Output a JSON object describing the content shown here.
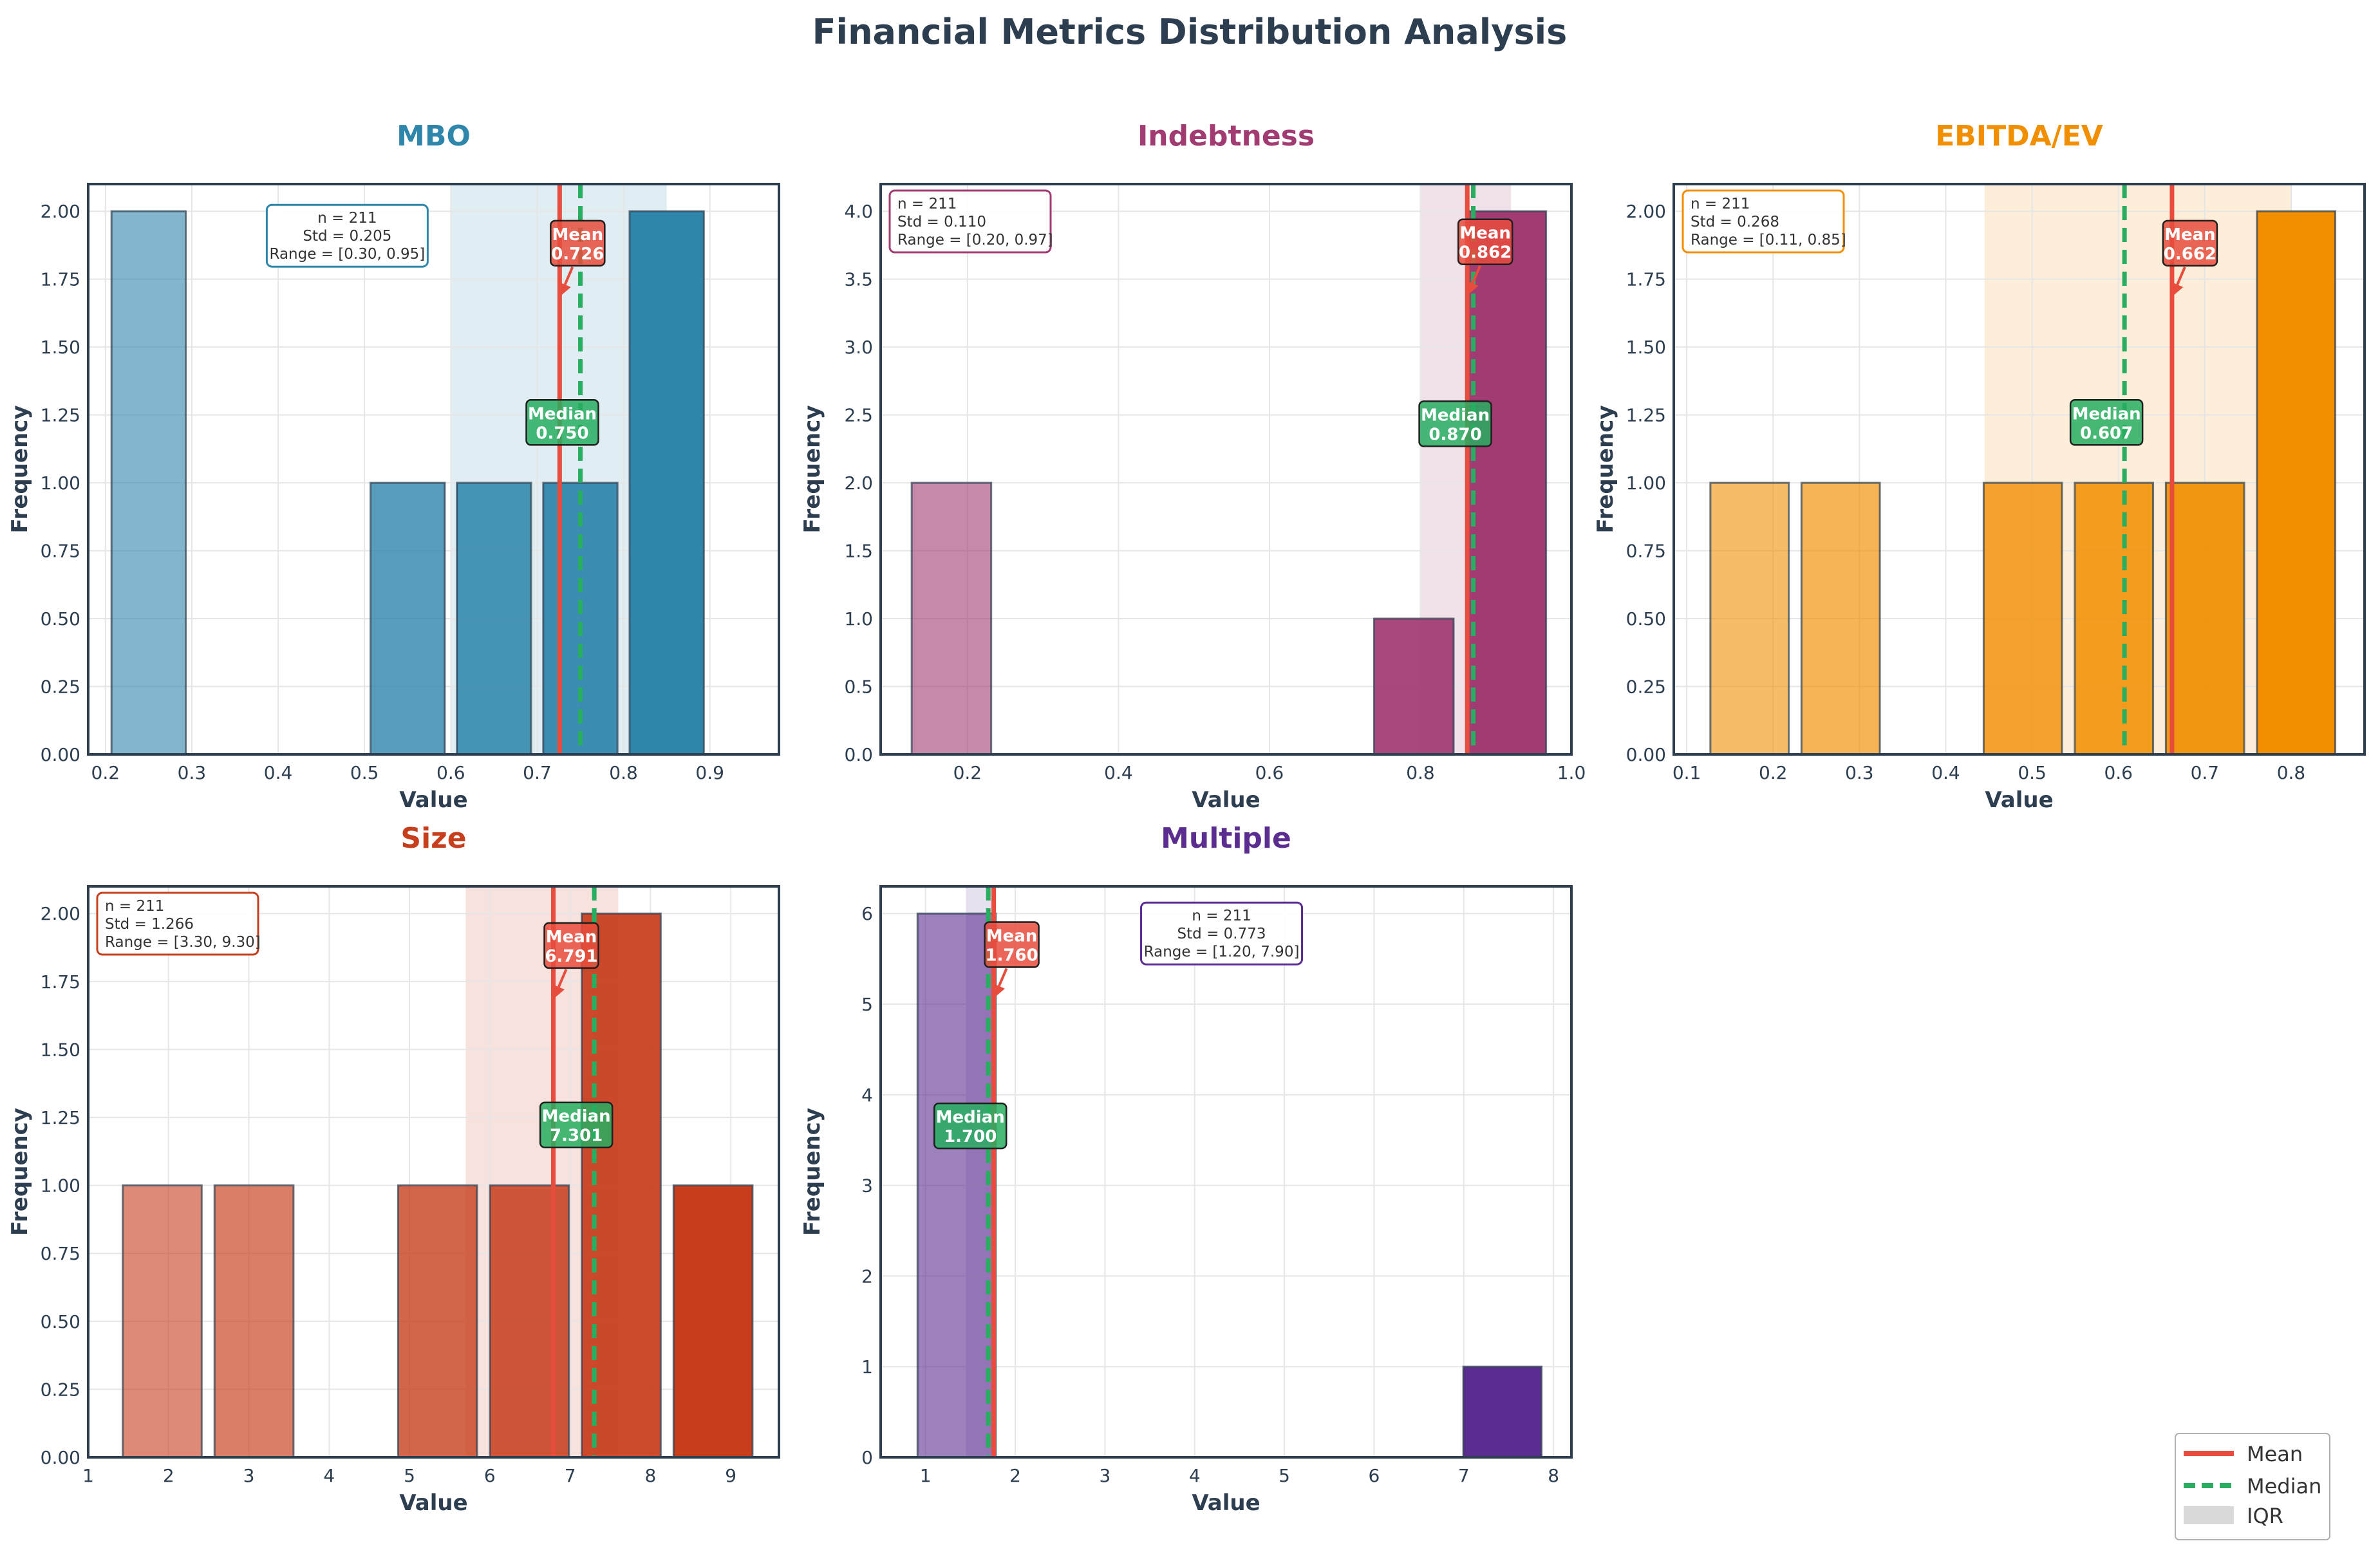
{
  "figure_title": "Financial Metrics Distribution Analysis",
  "colors": {
    "mean": "#e74c3c",
    "median": "#27ae60",
    "iqr": "#d9d9d9",
    "axis": "#2c3e50",
    "grid": "#e6e6e6"
  },
  "legend": {
    "mean_label": "Mean",
    "median_label": "Median",
    "iqr_label": "IQR"
  },
  "chart_data": [
    {
      "type": "bar",
      "title": "MBO",
      "color": "#2e86ab",
      "xlabel": "Value",
      "ylabel": "Frequency",
      "xlim": [
        0.18,
        0.98
      ],
      "ylim": [
        0,
        2.1
      ],
      "xticks": [
        0.2,
        0.3,
        0.4,
        0.5,
        0.6,
        0.7,
        0.8,
        0.9
      ],
      "xtick_labels": [
        "0.2",
        "0.3",
        "0.4",
        "0.5",
        "0.6",
        "0.7",
        "0.8",
        "0.9"
      ],
      "yticks": [
        0,
        0.25,
        0.5,
        0.75,
        1.0,
        1.25,
        1.5,
        1.75,
        2.0
      ],
      "ytick_labels": [
        "0.00",
        "0.25",
        "0.50",
        "0.75",
        "1.00",
        "1.25",
        "1.50",
        "1.75",
        "2.00"
      ],
      "bin_width": 0.1,
      "bins": [
        {
          "start": 0.2,
          "value": 2
        },
        {
          "start": 0.3,
          "value": 0
        },
        {
          "start": 0.4,
          "value": 0
        },
        {
          "start": 0.5,
          "value": 1
        },
        {
          "start": 0.6,
          "value": 1
        },
        {
          "start": 0.7,
          "value": 1
        },
        {
          "start": 0.8,
          "value": 2
        }
      ],
      "mean": 0.726,
      "median": 0.75,
      "iqr": [
        0.6,
        0.85
      ],
      "mean_label": "Mean\n0.726",
      "median_label": "Median\n0.750",
      "mean_label_y": 1.88,
      "median_label_y": 1.22,
      "stats": {
        "n": "n = 211",
        "std": "Std = 0.205",
        "range": "Range = [0.30, 0.95]",
        "position": "top-center",
        "x": 0.48,
        "y": 2.0
      }
    },
    {
      "type": "bar",
      "title": "Indebtness",
      "color": "#a23b72",
      "xlabel": "Value",
      "ylabel": "Frequency",
      "xlim": [
        0.085,
        1.0
      ],
      "ylim": [
        0,
        4.2
      ],
      "xticks": [
        0.2,
        0.4,
        0.6,
        0.8,
        1.0
      ],
      "xtick_labels": [
        "0.2",
        "0.4",
        "0.6",
        "0.8",
        "1.0"
      ],
      "yticks": [
        0,
        0.5,
        1.0,
        1.5,
        2.0,
        2.5,
        3.0,
        3.5,
        4.0
      ],
      "ytick_labels": [
        "0.0",
        "0.5",
        "1.0",
        "1.5",
        "2.0",
        "2.5",
        "3.0",
        "3.5",
        "4.0"
      ],
      "bin_width": 0.1225,
      "bins": [
        {
          "start": 0.1175,
          "value": 2
        },
        {
          "start": 0.24,
          "value": 0
        },
        {
          "start": 0.3625,
          "value": 0
        },
        {
          "start": 0.485,
          "value": 0
        },
        {
          "start": 0.6075,
          "value": 0
        },
        {
          "start": 0.73,
          "value": 1
        },
        {
          "start": 0.8525,
          "value": 4
        }
      ],
      "mean": 0.862,
      "median": 0.87,
      "iqr": [
        0.8,
        0.92
      ],
      "mean_label": "Mean\n0.862",
      "median_label": "Median\n0.870",
      "mean_label_y": 3.77,
      "median_label_y": 2.43,
      "stats": {
        "n": "n = 211",
        "std": "Std = 0.110",
        "range": "Range = [0.20, 0.97]",
        "position": "top-left"
      }
    },
    {
      "type": "bar",
      "title": "EBITDA/EV",
      "color": "#f18f01",
      "xlabel": "Value",
      "ylabel": "Frequency",
      "xlim": [
        0.085,
        0.885
      ],
      "ylim": [
        0,
        2.1
      ],
      "xticks": [
        0.1,
        0.2,
        0.3,
        0.4,
        0.5,
        0.6,
        0.7,
        0.8
      ],
      "xtick_labels": [
        "0.1",
        "0.2",
        "0.3",
        "0.4",
        "0.5",
        "0.6",
        "0.7",
        "0.8"
      ],
      "yticks": [
        0,
        0.25,
        0.5,
        0.75,
        1.0,
        1.25,
        1.5,
        1.75,
        2.0
      ],
      "ytick_labels": [
        "0.00",
        "0.25",
        "0.50",
        "0.75",
        "1.00",
        "1.25",
        "1.50",
        "1.75",
        "2.00"
      ],
      "bin_width": 0.1055,
      "bins": [
        {
          "start": 0.12,
          "value": 1
        },
        {
          "start": 0.2255,
          "value": 1
        },
        {
          "start": 0.331,
          "value": 0
        },
        {
          "start": 0.4365,
          "value": 1
        },
        {
          "start": 0.542,
          "value": 1
        },
        {
          "start": 0.6475,
          "value": 1
        },
        {
          "start": 0.753,
          "value": 2
        }
      ],
      "mean": 0.662,
      "median": 0.607,
      "iqr": [
        0.445,
        0.8
      ],
      "mean_label": "Mean\n0.662",
      "median_label": "Median\n0.607",
      "mean_label_y": 1.88,
      "median_label_y": 1.22,
      "stats": {
        "n": "n = 211",
        "std": "Std = 0.268",
        "range": "Range = [0.11, 0.85]",
        "position": "top-left"
      }
    },
    {
      "type": "bar",
      "title": "Size",
      "color": "#c73e1d",
      "xlabel": "Value",
      "ylabel": "Frequency",
      "xlim": [
        1.0,
        9.6
      ],
      "ylim": [
        0,
        2.1
      ],
      "xticks": [
        1,
        2,
        3,
        4,
        5,
        6,
        7,
        8,
        9
      ],
      "xtick_labels": [
        "1",
        "2",
        "3",
        "4",
        "5",
        "6",
        "7",
        "8",
        "9"
      ],
      "yticks": [
        0,
        0.25,
        0.5,
        0.75,
        1.0,
        1.25,
        1.5,
        1.75,
        2.0
      ],
      "ytick_labels": [
        "0.00",
        "0.25",
        "0.50",
        "0.75",
        "1.00",
        "1.25",
        "1.50",
        "1.75",
        "2.00"
      ],
      "bin_width": 1.143,
      "bins": [
        {
          "start": 1.35,
          "value": 1
        },
        {
          "start": 2.493,
          "value": 1
        },
        {
          "start": 3.636,
          "value": 0
        },
        {
          "start": 4.779,
          "value": 1
        },
        {
          "start": 5.922,
          "value": 1
        },
        {
          "start": 7.065,
          "value": 2
        },
        {
          "start": 8.208,
          "value": 1
        }
      ],
      "mean": 6.791,
      "median": 7.301,
      "iqr": [
        5.7,
        7.6
      ],
      "mean_label": "Mean\n6.791",
      "median_label": "Median\n7.301",
      "mean_label_y": 1.88,
      "median_label_y": 1.22,
      "stats": {
        "n": "n = 211",
        "std": "Std = 1.266",
        "range": "Range = [3.30, 9.30]",
        "position": "top-left"
      }
    },
    {
      "type": "bar",
      "title": "Multiple",
      "color": "#5c2d91",
      "xlabel": "Value",
      "ylabel": "Frequency",
      "xlim": [
        0.5,
        8.2
      ],
      "ylim": [
        0,
        6.3
      ],
      "xticks": [
        1,
        2,
        3,
        4,
        5,
        6,
        7,
        8
      ],
      "xtick_labels": [
        "1",
        "2",
        "3",
        "4",
        "5",
        "6",
        "7",
        "8"
      ],
      "yticks": [
        0,
        1,
        2,
        3,
        4,
        5,
        6
      ],
      "ytick_labels": [
        "0",
        "1",
        "2",
        "3",
        "4",
        "5",
        "6"
      ],
      "bin_width": 1.014,
      "bins": [
        {
          "start": 0.84,
          "value": 6
        },
        {
          "start": 1.854,
          "value": 0
        },
        {
          "start": 2.868,
          "value": 0
        },
        {
          "start": 3.882,
          "value": 0
        },
        {
          "start": 4.896,
          "value": 0
        },
        {
          "start": 5.91,
          "value": 0
        },
        {
          "start": 6.924,
          "value": 1
        }
      ],
      "mean": 1.76,
      "median": 1.7,
      "iqr": [
        1.45,
        1.75
      ],
      "mean_label": "Mean\n1.760",
      "median_label": "Median\n1.700",
      "mean_label_y": 5.65,
      "median_label_y": 3.65,
      "stats": {
        "n": "n = 211",
        "std": "Std = 0.773",
        "range": "Range = [1.20, 7.90]",
        "position": "top-center",
        "x": 4.3,
        "y": 6.05
      }
    }
  ]
}
